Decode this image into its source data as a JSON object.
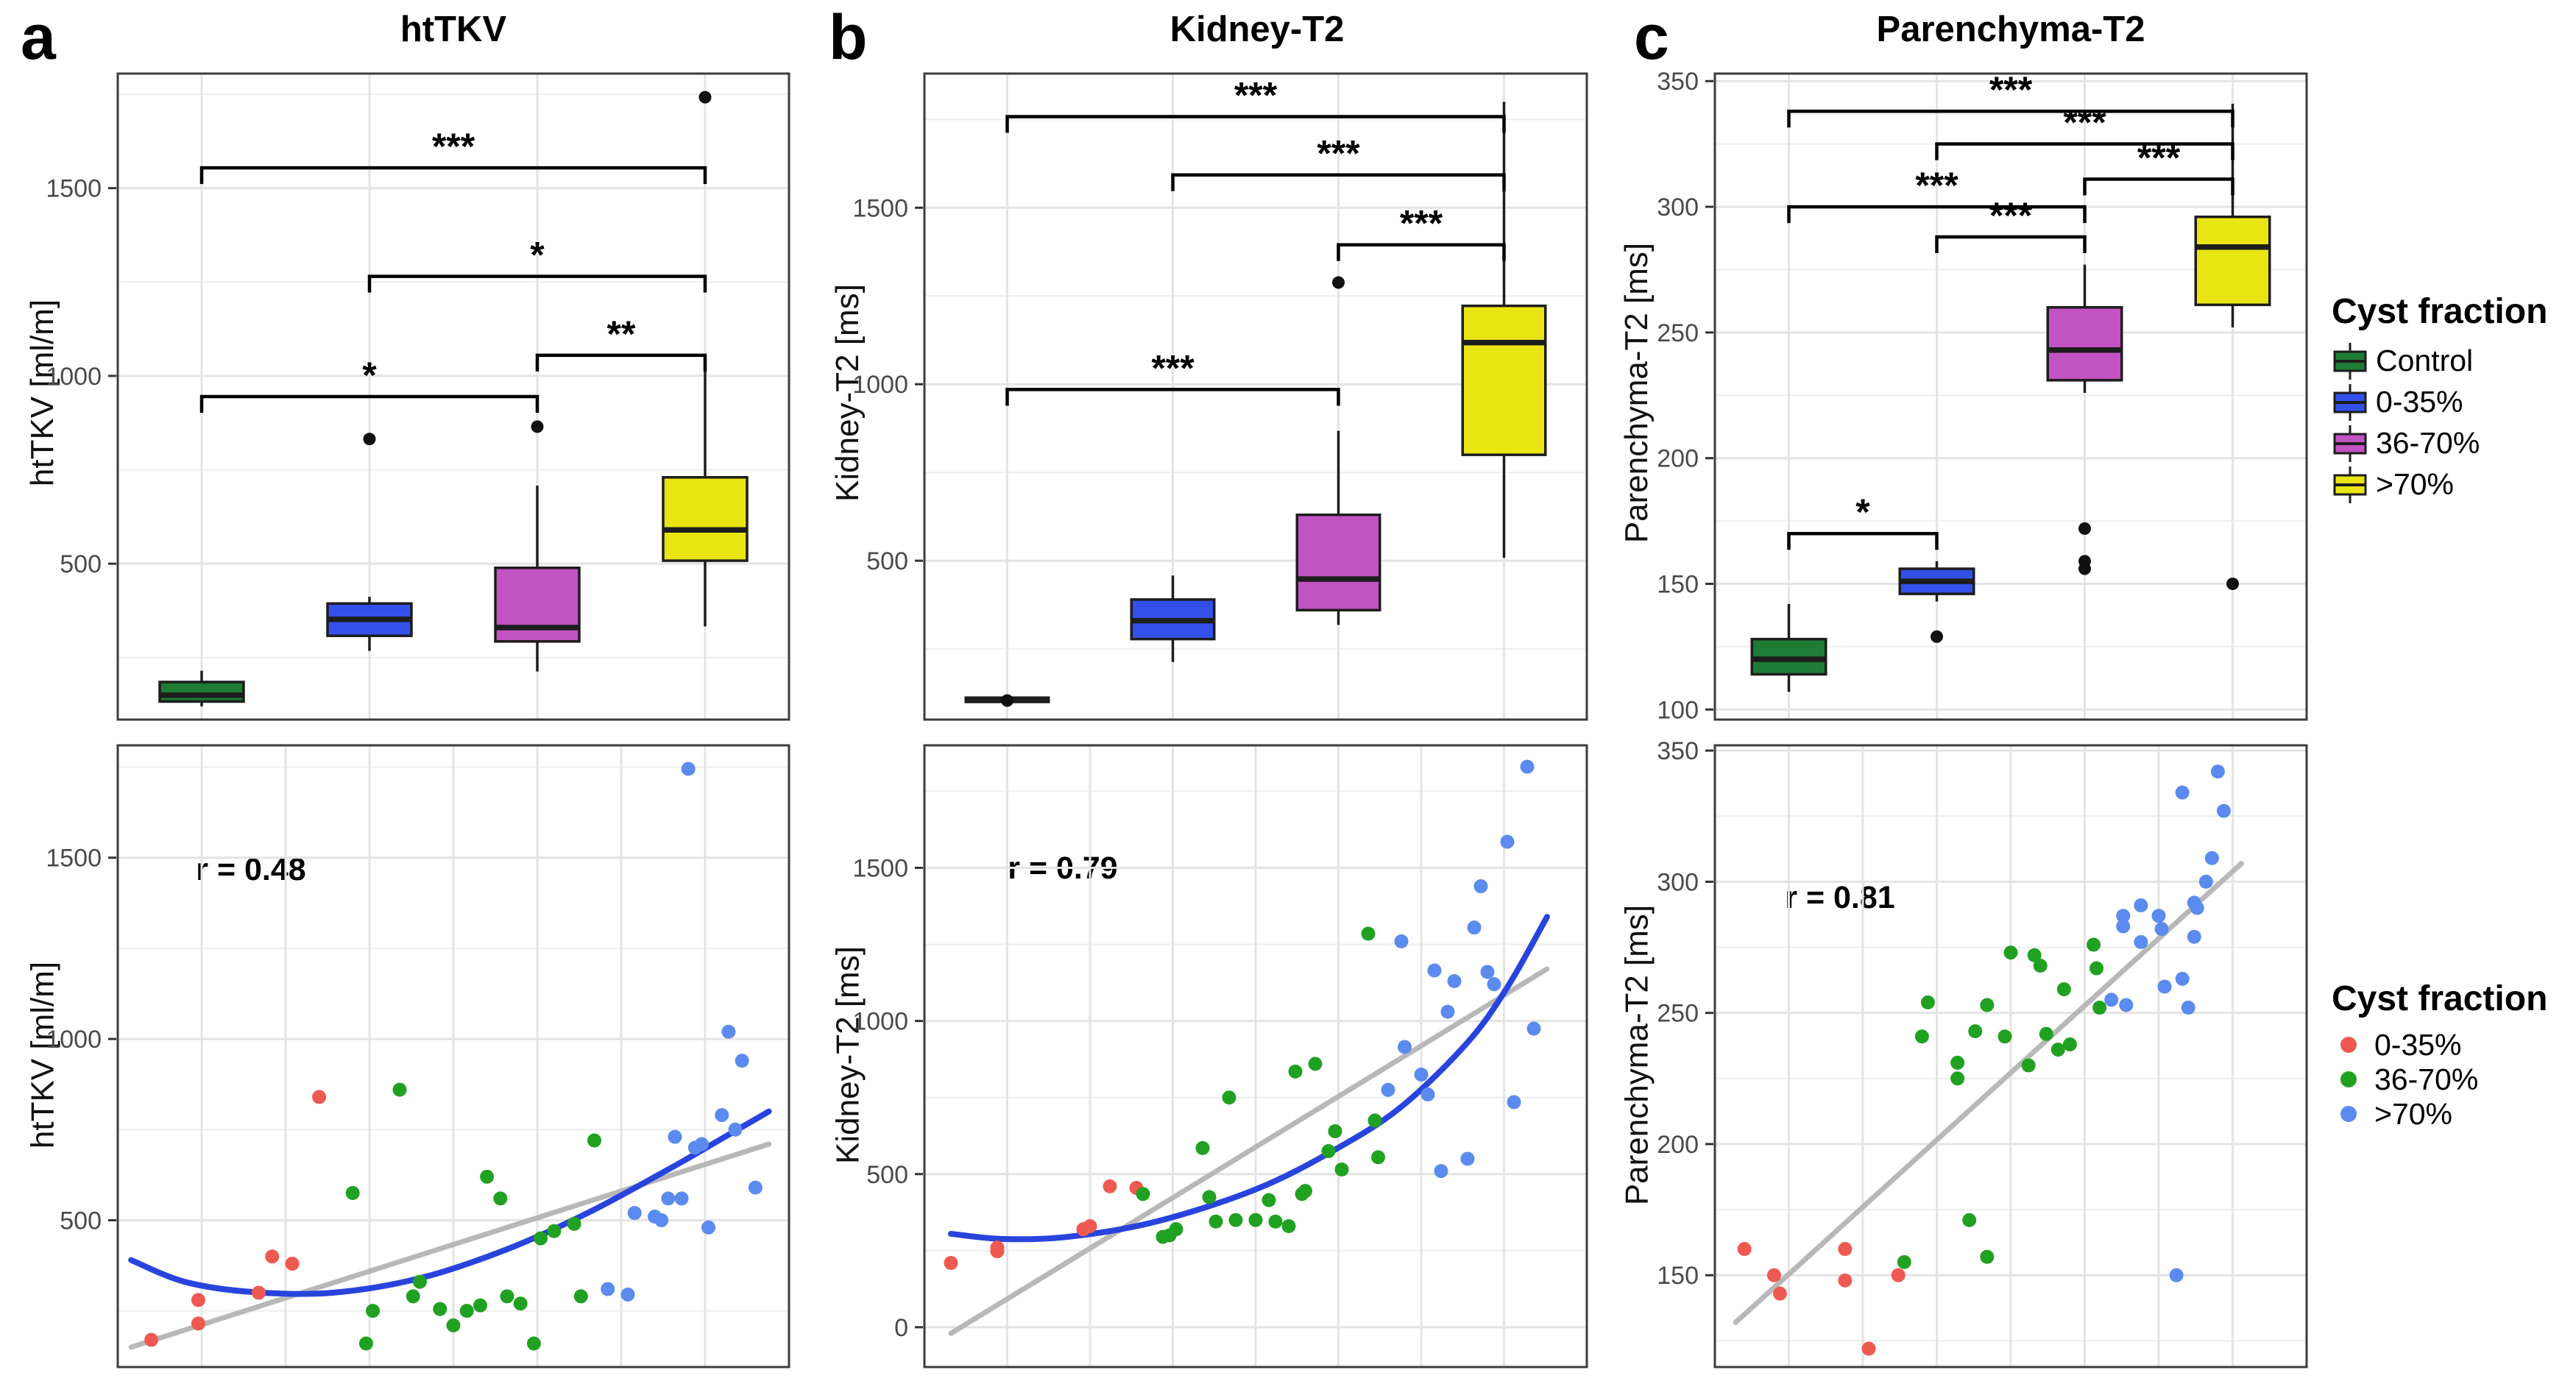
{
  "figure": {
    "panel_labels": [
      "a",
      "b",
      "c"
    ],
    "legend_box": {
      "title": "Cyst fraction",
      "entries": [
        {
          "label": "Control",
          "color": "#1e7c35"
        },
        {
          "label": "0-35%",
          "color": "#3351ea"
        },
        {
          "label": "36-70%",
          "color": "#c253c2"
        },
        {
          "label": ">70%",
          "color": "#e9e512"
        }
      ]
    },
    "legend_dots": {
      "title": "Cyst fraction",
      "entries": [
        {
          "label": "0-35%",
          "color": "#ee5a52"
        },
        {
          "label": "36-70%",
          "color": "#21a121"
        },
        {
          "label": ">70%",
          "color": "#5b8bee"
        }
      ]
    }
  },
  "chart_data": [
    {
      "type": "box",
      "title": "htTKV",
      "ylabel": "htTKV [ml/m]",
      "ylim": [
        85,
        1805
      ],
      "yticks": [
        500,
        1000,
        1500
      ],
      "yminor": [
        250,
        750,
        1250,
        1750
      ],
      "groups": [
        {
          "name": "Control",
          "color": "#1e7c35",
          "low": 120,
          "q1": 133,
          "median": 150,
          "q3": 185,
          "high": 215,
          "outliers": []
        },
        {
          "name": "0-35%",
          "color": "#3351ea",
          "low": 268,
          "q1": 308,
          "median": 352,
          "q3": 394,
          "high": 412,
          "outliers": [
            832
          ]
        },
        {
          "name": "36-70%",
          "color": "#c253c2",
          "low": 213,
          "q1": 293,
          "median": 330,
          "q3": 489,
          "high": 708,
          "outliers": [
            865
          ]
        },
        {
          "name": ">70%",
          "color": "#e9e512",
          "low": 333,
          "q1": 508,
          "median": 590,
          "q3": 730,
          "high": 1020,
          "outliers": [
            1742
          ]
        }
      ],
      "brackets": [
        {
          "from": 1,
          "to": 3,
          "y": 945,
          "label": "*"
        },
        {
          "from": 3,
          "to": 4,
          "y": 1055,
          "label": "**"
        },
        {
          "from": 2,
          "to": 4,
          "y": 1265,
          "label": "*"
        },
        {
          "from": 1,
          "to": 4,
          "y": 1554,
          "label": "***"
        }
      ]
    },
    {
      "type": "box",
      "title": "Kidney-T2",
      "ylabel": "Kidney-T2 [ms]",
      "ylim": [
        50,
        1880
      ],
      "yticks": [
        500,
        1000,
        1500
      ],
      "yminor": [
        250,
        750,
        1250,
        1750
      ],
      "groups": [
        {
          "name": "Control",
          "color": "#1e7c35",
          "low": 92,
          "q1": 100,
          "median": 106,
          "q3": 112,
          "high": 120,
          "outliers": [
            104
          ]
        },
        {
          "name": "0-35%",
          "color": "#3351ea",
          "low": 213,
          "q1": 278,
          "median": 330,
          "q3": 390,
          "high": 458,
          "outliers": []
        },
        {
          "name": "36-70%",
          "color": "#c253c2",
          "low": 318,
          "q1": 360,
          "median": 448,
          "q3": 630,
          "high": 868,
          "outliers": [
            1288
          ]
        },
        {
          "name": ">70%",
          "color": "#e9e512",
          "low": 508,
          "q1": 800,
          "median": 1118,
          "q3": 1222,
          "high": 1800,
          "outliers": []
        }
      ],
      "brackets": [
        {
          "from": 1,
          "to": 3,
          "y": 985,
          "label": "***"
        },
        {
          "from": 3,
          "to": 4,
          "y": 1395,
          "label": "***"
        },
        {
          "from": 2,
          "to": 4,
          "y": 1593,
          "label": "***"
        },
        {
          "from": 1,
          "to": 4,
          "y": 1758,
          "label": "***"
        }
      ]
    },
    {
      "type": "box",
      "title": "Parenchyma-T2",
      "ylabel": "Parenchyma-T2 [ms]",
      "ylim": [
        96,
        353
      ],
      "yticks": [
        100,
        150,
        200,
        250,
        300,
        350
      ],
      "yminor": [
        125,
        175,
        225,
        275,
        325
      ],
      "groups": [
        {
          "name": "Control",
          "color": "#1e7c35",
          "low": 107,
          "q1": 114,
          "median": 120,
          "q3": 128,
          "high": 142,
          "outliers": []
        },
        {
          "name": "0-35%",
          "color": "#3351ea",
          "low": 143,
          "q1": 146,
          "median": 151,
          "q3": 156,
          "high": 159,
          "outliers": [
            129
          ]
        },
        {
          "name": "36-70%",
          "color": "#c253c2",
          "low": 226,
          "q1": 231,
          "median": 243,
          "q3": 260,
          "high": 277,
          "outliers": [
            156,
            159,
            172
          ]
        },
        {
          "name": ">70%",
          "color": "#e9e512",
          "low": 252,
          "q1": 261,
          "median": 284,
          "q3": 296,
          "high": 341,
          "outliers": [
            150
          ]
        }
      ],
      "brackets": [
        {
          "from": 1,
          "to": 2,
          "y": 170,
          "label": "*"
        },
        {
          "from": 2,
          "to": 3,
          "y": 288,
          "label": "***"
        },
        {
          "from": 1,
          "to": 3,
          "y": 300,
          "label": "***"
        },
        {
          "from": 3,
          "to": 4,
          "y": 311,
          "label": "***"
        },
        {
          "from": 2,
          "to": 4,
          "y": 325,
          "label": "***"
        },
        {
          "from": 1,
          "to": 4,
          "y": 338,
          "label": "***"
        }
      ]
    },
    {
      "type": "scatter",
      "title": "",
      "r_label": "r = 0.48",
      "ylabel": "htTKV [ml/m]",
      "ylim": [
        95,
        1810
      ],
      "yticks": [
        500,
        1000,
        1500
      ],
      "yminor": [
        250,
        750,
        1250,
        1750
      ],
      "series": [
        {
          "name": "0-35%",
          "color": "#ee5a52",
          "points": [
            [
              0.05,
              170
            ],
            [
              0.12,
              280
            ],
            [
              0.12,
              215
            ],
            [
              0.21,
              300
            ],
            [
              0.23,
              400
            ],
            [
              0.26,
              380
            ],
            [
              0.3,
              840
            ]
          ]
        },
        {
          "name": "36-70%",
          "color": "#21a121",
          "points": [
            [
              0.35,
              575
            ],
            [
              0.37,
              160
            ],
            [
              0.38,
              250
            ],
            [
              0.42,
              860
            ],
            [
              0.44,
              290
            ],
            [
              0.45,
              330
            ],
            [
              0.48,
              255
            ],
            [
              0.5,
              210
            ],
            [
              0.52,
              250
            ],
            [
              0.54,
              265
            ],
            [
              0.55,
              620
            ],
            [
              0.57,
              560
            ],
            [
              0.58,
              290
            ],
            [
              0.6,
              270
            ],
            [
              0.62,
              160
            ],
            [
              0.63,
              450
            ],
            [
              0.65,
              470
            ],
            [
              0.68,
              490
            ],
            [
              0.69,
              290
            ],
            [
              0.71,
              720
            ]
          ]
        },
        {
          "name": ">70%",
          "color": "#5b8bee",
          "points": [
            [
              0.73,
              310
            ],
            [
              0.76,
              295
            ],
            [
              0.77,
              520
            ],
            [
              0.8,
              510
            ],
            [
              0.81,
              500
            ],
            [
              0.82,
              560
            ],
            [
              0.83,
              730
            ],
            [
              0.84,
              560
            ],
            [
              0.85,
              1745
            ],
            [
              0.86,
              700
            ],
            [
              0.87,
              710
            ],
            [
              0.88,
              480
            ],
            [
              0.9,
              790
            ],
            [
              0.91,
              1020
            ],
            [
              0.92,
              750
            ],
            [
              0.93,
              940
            ],
            [
              0.95,
              590
            ]
          ]
        }
      ],
      "fits": [
        {
          "kind": "line",
          "color": "#b8b8b8",
          "x1": 0.02,
          "y1": 150,
          "x2": 0.97,
          "y2": 710
        },
        {
          "kind": "curve",
          "color": "#2944dd",
          "points": [
            [
              0.02,
              390
            ],
            [
              0.1,
              330
            ],
            [
              0.2,
              302
            ],
            [
              0.32,
              300
            ],
            [
              0.45,
              340
            ],
            [
              0.58,
              420
            ],
            [
              0.7,
              520
            ],
            [
              0.82,
              640
            ],
            [
              0.9,
              725
            ],
            [
              0.97,
              800
            ]
          ]
        }
      ]
    },
    {
      "type": "scatter",
      "title": "",
      "r_label": "r = 0.79",
      "ylabel": "Kidney-T2 [ms]",
      "ylim": [
        -130,
        1900
      ],
      "yticks": [
        0,
        500,
        1000,
        1500
      ],
      "yminor": [
        250,
        750,
        1250,
        1750
      ],
      "series": [
        {
          "name": "0-35%",
          "color": "#ee5a52",
          "points": [
            [
              0.04,
              210
            ],
            [
              0.11,
              260
            ],
            [
              0.11,
              248
            ],
            [
              0.24,
              320
            ],
            [
              0.25,
              330
            ],
            [
              0.28,
              460
            ],
            [
              0.32,
              455
            ]
          ]
        },
        {
          "name": "36-70%",
          "color": "#21a121",
          "points": [
            [
              0.33,
              435
            ],
            [
              0.36,
              295
            ],
            [
              0.37,
              300
            ],
            [
              0.38,
              320
            ],
            [
              0.42,
              585
            ],
            [
              0.43,
              425
            ],
            [
              0.44,
              345
            ],
            [
              0.46,
              750
            ],
            [
              0.47,
              350
            ],
            [
              0.5,
              350
            ],
            [
              0.52,
              415
            ],
            [
              0.53,
              345
            ],
            [
              0.55,
              330
            ],
            [
              0.56,
              835
            ],
            [
              0.57,
              435
            ],
            [
              0.575,
              445
            ],
            [
              0.59,
              860
            ],
            [
              0.61,
              575
            ],
            [
              0.62,
              640
            ],
            [
              0.63,
              515
            ],
            [
              0.67,
              1285
            ],
            [
              0.68,
              675
            ],
            [
              0.685,
              555
            ]
          ]
        },
        {
          "name": ">70%",
          "color": "#5b8bee",
          "points": [
            [
              0.7,
              775
            ],
            [
              0.72,
              1260
            ],
            [
              0.725,
              915
            ],
            [
              0.75,
              825
            ],
            [
              0.76,
              760
            ],
            [
              0.77,
              1165
            ],
            [
              0.78,
              510
            ],
            [
              0.79,
              1030
            ],
            [
              0.8,
              1130
            ],
            [
              0.82,
              550
            ],
            [
              0.83,
              1305
            ],
            [
              0.84,
              1440
            ],
            [
              0.85,
              1160
            ],
            [
              0.86,
              1120
            ],
            [
              0.88,
              1585
            ],
            [
              0.89,
              735
            ],
            [
              0.91,
              1830
            ],
            [
              0.92,
              975
            ]
          ]
        }
      ],
      "fits": [
        {
          "kind": "line",
          "color": "#b8b8b8",
          "x1": 0.04,
          "y1": -20,
          "x2": 0.94,
          "y2": 1170
        },
        {
          "kind": "curve",
          "color": "#2944dd",
          "points": [
            [
              0.04,
              305
            ],
            [
              0.12,
              288
            ],
            [
              0.22,
              296
            ],
            [
              0.35,
              345
            ],
            [
              0.5,
              450
            ],
            [
              0.62,
              580
            ],
            [
              0.72,
              720
            ],
            [
              0.82,
              930
            ],
            [
              0.88,
              1110
            ],
            [
              0.94,
              1340
            ]
          ]
        }
      ]
    },
    {
      "type": "scatter",
      "title": "",
      "r_label": "r = 0.81",
      "ylabel": "Parenchyma-T2 [ms]",
      "ylim": [
        115,
        352
      ],
      "yticks": [
        150,
        200,
        250,
        300,
        350
      ],
      "yminor": [
        125,
        175,
        225,
        275,
        325
      ],
      "series": [
        {
          "name": "0-35%",
          "color": "#ee5a52",
          "points": [
            [
              0.05,
              160
            ],
            [
              0.1,
              150
            ],
            [
              0.11,
              143
            ],
            [
              0.22,
              160
            ],
            [
              0.22,
              148
            ],
            [
              0.26,
              122
            ],
            [
              0.31,
              150
            ]
          ]
        },
        {
          "name": "36-70%",
          "color": "#21a121",
          "points": [
            [
              0.32,
              155
            ],
            [
              0.35,
              241
            ],
            [
              0.36,
              254
            ],
            [
              0.41,
              225
            ],
            [
              0.41,
              231
            ],
            [
              0.43,
              171
            ],
            [
              0.44,
              243
            ],
            [
              0.46,
              157
            ],
            [
              0.46,
              253
            ],
            [
              0.49,
              241
            ],
            [
              0.5,
              273
            ],
            [
              0.53,
              230
            ],
            [
              0.54,
              272
            ],
            [
              0.55,
              268
            ],
            [
              0.56,
              242
            ],
            [
              0.58,
              236
            ],
            [
              0.59,
              259
            ],
            [
              0.6,
              238
            ],
            [
              0.64,
              276
            ],
            [
              0.645,
              267
            ],
            [
              0.65,
              252
            ]
          ]
        },
        {
          "name": ">70%",
          "color": "#5b8bee",
          "points": [
            [
              0.67,
              255
            ],
            [
              0.69,
              287
            ],
            [
              0.69,
              283
            ],
            [
              0.695,
              253
            ],
            [
              0.72,
              291
            ],
            [
              0.72,
              277
            ],
            [
              0.78,
              150
            ],
            [
              0.75,
              287
            ],
            [
              0.755,
              282
            ],
            [
              0.76,
              260
            ],
            [
              0.79,
              334
            ],
            [
              0.79,
              263
            ],
            [
              0.81,
              292
            ],
            [
              0.815,
              290
            ],
            [
              0.81,
              279
            ],
            [
              0.8,
              252
            ],
            [
              0.83,
              300
            ],
            [
              0.84,
              309
            ],
            [
              0.85,
              342
            ],
            [
              0.86,
              327
            ]
          ]
        }
      ],
      "fits": [
        {
          "kind": "line",
          "color": "#b8b8b8",
          "x1": 0.035,
          "y1": 132,
          "x2": 0.89,
          "y2": 307
        }
      ]
    }
  ]
}
